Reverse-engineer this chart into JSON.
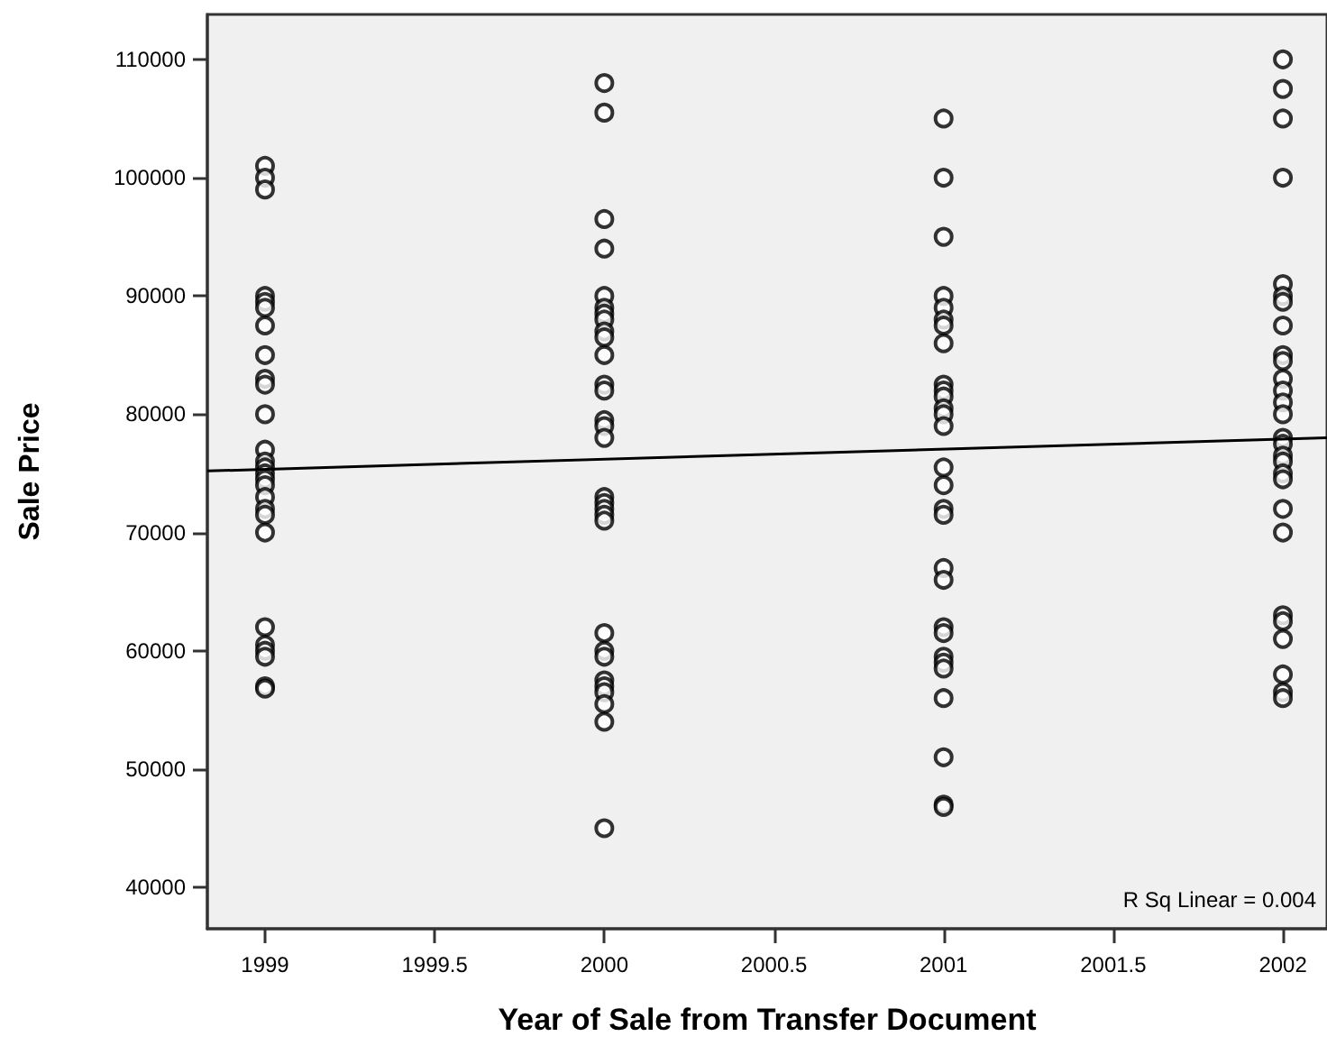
{
  "chart_data": {
    "type": "scatter",
    "xlabel": "Year of Sale from Transfer Document",
    "ylabel": "Sale Price",
    "xlim": [
      1998.83,
      2002.13
    ],
    "xticks": [
      1999,
      1999.5,
      2000,
      2000.5,
      2001,
      2001.5,
      2002
    ],
    "ylim": [
      36500,
      113800
    ],
    "yticks": [
      40000,
      50000,
      60000,
      70000,
      80000,
      90000,
      100000,
      110000
    ],
    "grid": false,
    "annotations": [
      "R Sq Linear = 0.004"
    ],
    "series": [
      {
        "type": "scatter",
        "marker": "circle",
        "color": "#000000",
        "x": [
          1999,
          1999,
          1999,
          1999,
          1999,
          1999,
          1999,
          1999,
          1999,
          1999,
          1999,
          1999,
          1999,
          1999,
          1999,
          1999,
          1999,
          1999,
          1999,
          1999,
          1999,
          1999,
          1999,
          1999,
          1999,
          1999,
          1999,
          2000,
          2000,
          2000,
          2000,
          2000,
          2000,
          2000,
          2000,
          2000,
          2000,
          2000,
          2000,
          2000,
          2000,
          2000,
          2000,
          2000,
          2000,
          2000,
          2000,
          2000,
          2000,
          2000,
          2000,
          2000,
          2000,
          2000,
          2000,
          2000,
          2000,
          2001,
          2001,
          2001,
          2001,
          2001,
          2001,
          2001,
          2001,
          2001,
          2001,
          2001,
          2001,
          2001,
          2001,
          2001,
          2001,
          2001,
          2001,
          2001,
          2001,
          2001,
          2001,
          2001,
          2001,
          2001,
          2001,
          2001,
          2001,
          2001,
          2002,
          2002,
          2002,
          2002,
          2002,
          2002,
          2002,
          2002,
          2002,
          2002,
          2002,
          2002,
          2002,
          2002,
          2002,
          2002,
          2002,
          2002,
          2002,
          2002,
          2002,
          2002,
          2002,
          2002,
          2002,
          2002,
          2002,
          2002
        ],
        "values": [
          101000,
          100000,
          99000,
          90000,
          89500,
          89000,
          87500,
          85000,
          83000,
          82500,
          80000,
          77000,
          76000,
          75500,
          75000,
          74500,
          74000,
          73000,
          72000,
          71500,
          70000,
          62000,
          60500,
          60000,
          59500,
          57000,
          56800,
          108000,
          105500,
          96500,
          94000,
          90000,
          89000,
          88500,
          88000,
          87000,
          86500,
          85000,
          82500,
          82000,
          79500,
          79000,
          78000,
          73000,
          72500,
          72000,
          71500,
          71000,
          61500,
          60000,
          59500,
          57500,
          57000,
          56500,
          55500,
          54000,
          45000,
          105000,
          100000,
          95000,
          90000,
          89000,
          88000,
          87500,
          86000,
          82500,
          82000,
          81500,
          80500,
          80000,
          79000,
          75500,
          74000,
          72000,
          71500,
          67000,
          66000,
          62000,
          61500,
          59500,
          59000,
          58500,
          56000,
          51000,
          47000,
          46800,
          110000,
          107500,
          105000,
          100000,
          91000,
          90000,
          89500,
          87500,
          85000,
          84500,
          83000,
          82000,
          81000,
          80000,
          78000,
          77500,
          76500,
          76000,
          75000,
          74500,
          72000,
          70000,
          63000,
          62500,
          61000,
          58000,
          56500,
          56000
        ]
      },
      {
        "type": "line",
        "marker": "none",
        "line_style": "solid",
        "color": "#000000",
        "x": [
          1998.83,
          2002.13
        ],
        "values": [
          75200,
          78000
        ]
      }
    ]
  }
}
